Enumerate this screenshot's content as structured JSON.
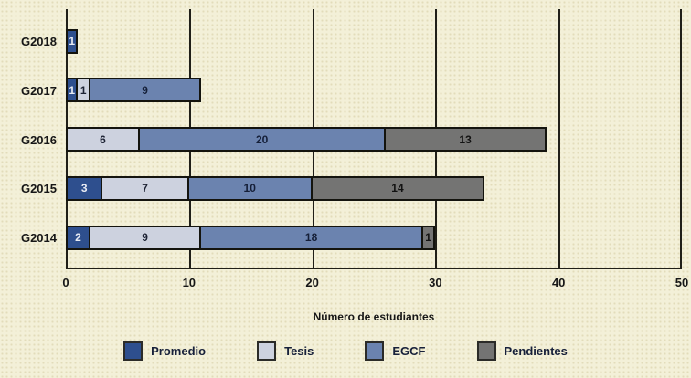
{
  "chart_data": {
    "type": "bar",
    "orientation": "horizontal",
    "stacked": true,
    "categories": [
      "G2018",
      "G2017",
      "G2016",
      "G2015",
      "G2014"
    ],
    "series": [
      {
        "name": "Promedio",
        "color": "#2e4f8e",
        "label_color": "#e9ecf4",
        "values": [
          1,
          1,
          0,
          3,
          2
        ]
      },
      {
        "name": "Tesis",
        "color": "#cdd2df",
        "label_color": "#1c2233",
        "values": [
          0,
          1,
          6,
          7,
          9
        ]
      },
      {
        "name": "EGCF",
        "color": "#6b83af",
        "label_color": "#151f38",
        "values": [
          0,
          9,
          20,
          10,
          18
        ]
      },
      {
        "name": "Pendientes",
        "color": "#747473",
        "label_color": "#121212",
        "values": [
          0,
          0,
          13,
          14,
          1
        ]
      }
    ],
    "xlabel": "Número de estudiantes",
    "x_ticks": [
      "0",
      "10",
      "20",
      "30",
      "40",
      "50"
    ],
    "xlim": [
      0,
      50
    ],
    "grid": "vertical",
    "legend_position": "bottom",
    "totals": [
      1,
      11,
      39,
      34,
      30
    ]
  },
  "colors": {
    "background": "#f3f0d8",
    "gridline": "#201f18",
    "bar_border": "#14140e",
    "axis_text": "#161616",
    "legend_text": "#17203a"
  }
}
